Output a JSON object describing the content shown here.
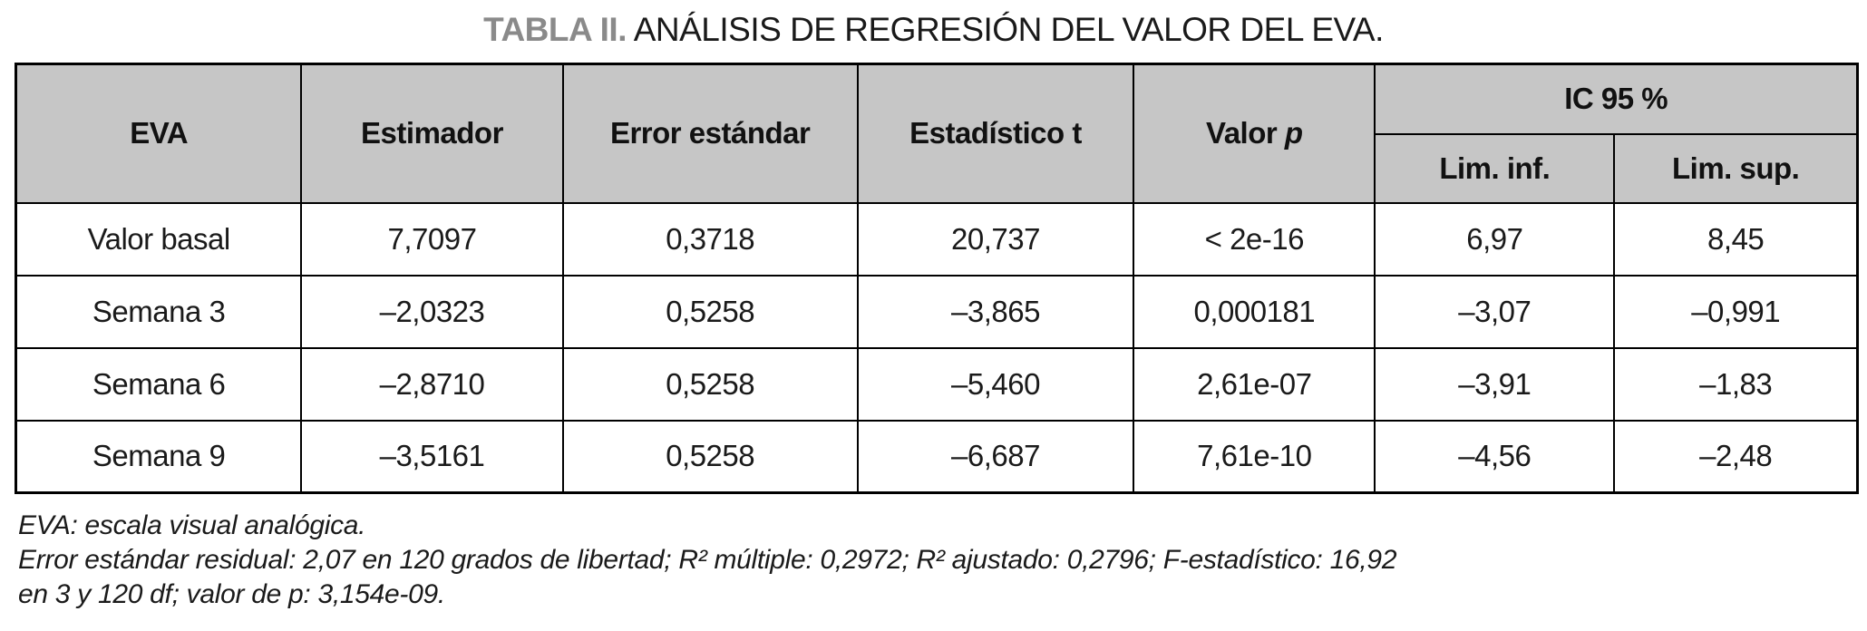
{
  "title": {
    "label": "TABLA II.",
    "text": "ANÁLISIS DE REGRESIÓN DEL VALOR DEL EVA."
  },
  "colors": {
    "header_bg": "#c6c6c6",
    "title_accent": "#8a8a8a",
    "border": "#000000"
  },
  "table": {
    "headers": {
      "eva": "EVA",
      "estimador": "Estimador",
      "error_estandar": "Error estándar",
      "estadistico_t": "Estadístico t",
      "valor": "Valor",
      "p": "p",
      "ic95": "IC 95 %",
      "lim_inf": "Lim. inf.",
      "lim_sup": "Lim. sup."
    },
    "rows": [
      {
        "label": "Valor basal",
        "estimador": "7,7097",
        "error": "0,3718",
        "t": "20,737",
        "p": "< 2e-16",
        "lim_inf": "6,97",
        "lim_sup": "8,45"
      },
      {
        "label": "Semana 3",
        "estimador": "–2,0323",
        "error": "0,5258",
        "t": "–3,865",
        "p": "0,000181",
        "lim_inf": "–3,07",
        "lim_sup": "–0,991"
      },
      {
        "label": "Semana 6",
        "estimador": "–2,8710",
        "error": "0,5258",
        "t": "–5,460",
        "p": "2,61e-07",
        "lim_inf": "–3,91",
        "lim_sup": "–1,83"
      },
      {
        "label": "Semana 9",
        "estimador": "–3,5161",
        "error": "0,5258",
        "t": "–6,687",
        "p": "7,61e-10",
        "lim_inf": "–4,56",
        "lim_sup": "–2,48"
      }
    ]
  },
  "footnotes": {
    "line1": "EVA: escala visual analógica.",
    "line2": "Error estándar residual: 2,07 en 120 grados de libertad; R² múltiple: 0,2972; R² ajustado: 0,2796; F-estadístico: 16,92",
    "line3": "en 3 y 120 df; valor de p: 3,154e-09."
  }
}
